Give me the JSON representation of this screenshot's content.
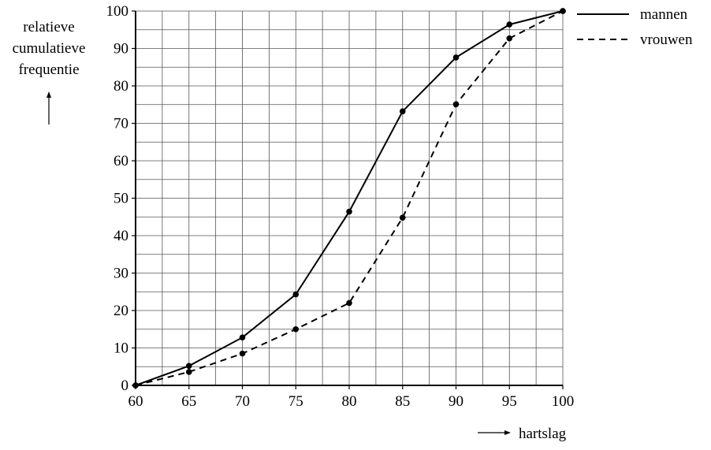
{
  "chart_data": {
    "type": "line",
    "title": "",
    "ylabel_lines": [
      "relatieve",
      "cumulatieve",
      "frequentie"
    ],
    "xlabel": "hartslag",
    "xlim": [
      60,
      100
    ],
    "ylim": [
      0,
      100
    ],
    "x_ticks": [
      "60",
      "65",
      "70",
      "75",
      "80",
      "85",
      "90",
      "95",
      "100"
    ],
    "y_ticks": [
      "0",
      "10",
      "20",
      "30",
      "40",
      "50",
      "60",
      "70",
      "80",
      "90",
      "100"
    ],
    "grid": true,
    "legend_position": "top-right",
    "x": [
      60,
      65,
      70,
      75,
      80,
      85,
      90,
      95,
      100
    ],
    "series": [
      {
        "name": "mannen",
        "style": "solid",
        "values": [
          0,
          5.2,
          12.8,
          24.3,
          46.4,
          73.2,
          87.6,
          96.4,
          100
        ]
      },
      {
        "name": "vrouwen",
        "style": "dashed",
        "values": [
          0,
          3.6,
          8.5,
          15,
          22,
          44.8,
          75.1,
          92.7,
          100
        ]
      }
    ]
  }
}
